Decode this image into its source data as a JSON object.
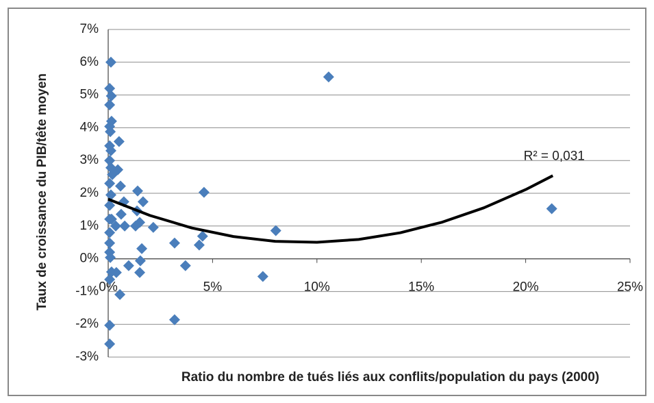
{
  "chart_data": {
    "type": "scatter",
    "x_label": "Ratio du nombre de tués liés aux conflits/population du pays (2000)",
    "y_label": "Taux de croissance du PIB/tête  moyen",
    "color": "#4a7ebb",
    "xlim": [
      0,
      25
    ],
    "ylim": [
      -3,
      7
    ],
    "xticks": [
      {
        "value": 0,
        "label": "0%"
      },
      {
        "value": 5,
        "label": "5%"
      },
      {
        "value": 10,
        "label": "10%"
      },
      {
        "value": 15,
        "label": "15%"
      },
      {
        "value": 20,
        "label": "20%"
      },
      {
        "value": 25,
        "label": "25%"
      }
    ],
    "yticks": [
      {
        "value": -3,
        "label": "-3%"
      },
      {
        "value": -2,
        "label": "-2%"
      },
      {
        "value": -1,
        "label": "-1%"
      },
      {
        "value": 0,
        "label": "0%"
      },
      {
        "value": 1,
        "label": "1%"
      },
      {
        "value": 2,
        "label": "2%"
      },
      {
        "value": 3,
        "label": "3%"
      },
      {
        "value": 4,
        "label": "4%"
      },
      {
        "value": 5,
        "label": "5%"
      },
      {
        "value": 6,
        "label": "6%"
      },
      {
        "value": 7,
        "label": "7%"
      }
    ],
    "grid": true,
    "x": [
      0.13,
      10.56,
      0.07,
      0.15,
      0.07,
      0.16,
      0.07,
      0.1,
      0.52,
      0.07,
      0.13,
      0.07,
      0.13,
      0.46,
      0.2,
      0.59,
      0.07,
      1.41,
      4.59,
      0.13,
      0.75,
      1.67,
      0.07,
      0.62,
      1.38,
      0.07,
      1.51,
      1.31,
      0.79,
      0.36,
      2.16,
      8.03,
      0.07,
      4.52,
      0.07,
      3.18,
      4.36,
      1.61,
      0.07,
      0.1,
      1.54,
      0.98,
      3.7,
      0.16,
      0.39,
      1.51,
      7.41,
      0.07,
      0.56,
      3.18,
      0.07,
      0.07,
      21.25,
      0.16
    ],
    "y": [
      6.0,
      5.55,
      5.2,
      4.97,
      4.7,
      4.2,
      4.04,
      3.88,
      3.58,
      3.45,
      3.3,
      3.0,
      2.78,
      2.72,
      2.57,
      2.22,
      2.3,
      2.07,
      2.03,
      1.95,
      1.74,
      1.74,
      1.63,
      1.36,
      1.46,
      1.21,
      1.11,
      1.0,
      1.0,
      1.0,
      0.96,
      0.86,
      0.8,
      0.69,
      0.48,
      0.48,
      0.42,
      0.31,
      0.2,
      0.04,
      -0.06,
      -0.21,
      -0.21,
      -0.4,
      -0.42,
      -0.42,
      -0.54,
      -0.63,
      -1.09,
      -1.86,
      -2.03,
      -2.6,
      1.53,
      1.21
    ],
    "trendline": {
      "x": [
        0,
        2,
        4,
        6,
        8,
        10,
        12,
        14,
        16,
        18,
        20,
        21.3
      ],
      "y": [
        1.82,
        1.323,
        0.943,
        0.679,
        0.533,
        0.504,
        0.591,
        0.796,
        1.118,
        1.557,
        2.113,
        2.537
      ],
      "color": "#000000",
      "label": "R² = 0,031"
    }
  }
}
